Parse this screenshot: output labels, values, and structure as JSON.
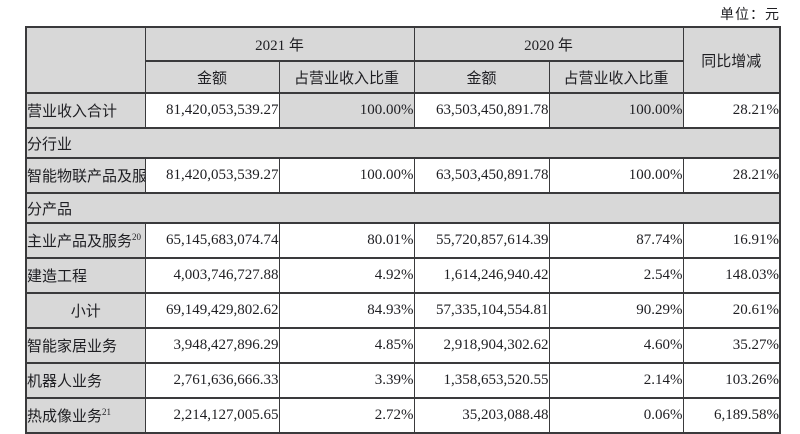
{
  "unit_label": "单位：元",
  "table": {
    "header": {
      "year_2021": "2021 年",
      "year_2020": "2020 年",
      "yoy": "同比增减",
      "amount": "金额",
      "share": "占营业收入比重"
    },
    "rows": [
      {
        "type": "data",
        "label": "营业收入合计",
        "sup": "",
        "label_align": "left",
        "share_shaded": true,
        "values": [
          "81,420,053,539.27",
          "100.00%",
          "63,503,450,891.78",
          "100.00%",
          "28.21%"
        ]
      },
      {
        "type": "section",
        "label": "分行业"
      },
      {
        "type": "data",
        "label": "智能物联产品及服务",
        "sup": "",
        "label_align": "left",
        "share_shaded": false,
        "values": [
          "81,420,053,539.27",
          "100.00%",
          "63,503,450,891.78",
          "100.00%",
          "28.21%"
        ]
      },
      {
        "type": "section",
        "label": "分产品"
      },
      {
        "type": "data",
        "label": "主业产品及服务",
        "sup": "20",
        "label_align": "left",
        "share_shaded": false,
        "values": [
          "65,145,683,074.74",
          "80.01%",
          "55,720,857,614.39",
          "87.74%",
          "16.91%"
        ]
      },
      {
        "type": "data",
        "label": "建造工程",
        "sup": "",
        "label_align": "left",
        "share_shaded": false,
        "values": [
          "4,003,746,727.88",
          "4.92%",
          "1,614,246,940.42",
          "2.54%",
          "148.03%"
        ]
      },
      {
        "type": "data",
        "label": "小计",
        "sup": "",
        "label_align": "center",
        "share_shaded": false,
        "values": [
          "69,149,429,802.62",
          "84.93%",
          "57,335,104,554.81",
          "90.29%",
          "20.61%"
        ]
      },
      {
        "type": "data",
        "label": "智能家居业务",
        "sup": "",
        "label_align": "left",
        "share_shaded": false,
        "values": [
          "3,948,427,896.29",
          "4.85%",
          "2,918,904,302.62",
          "4.60%",
          "35.27%"
        ]
      },
      {
        "type": "data",
        "label": "机器人业务",
        "sup": "",
        "label_align": "left",
        "share_shaded": false,
        "values": [
          "2,761,636,666.33",
          "3.39%",
          "1,358,653,520.55",
          "2.14%",
          "103.26%"
        ]
      },
      {
        "type": "data",
        "label": "热成像业务",
        "sup": "21",
        "label_align": "left",
        "share_shaded": false,
        "values": [
          "2,214,127,005.65",
          "2.72%",
          "35,203,088.48",
          "0.06%",
          "6,189.58%"
        ]
      }
    ]
  }
}
